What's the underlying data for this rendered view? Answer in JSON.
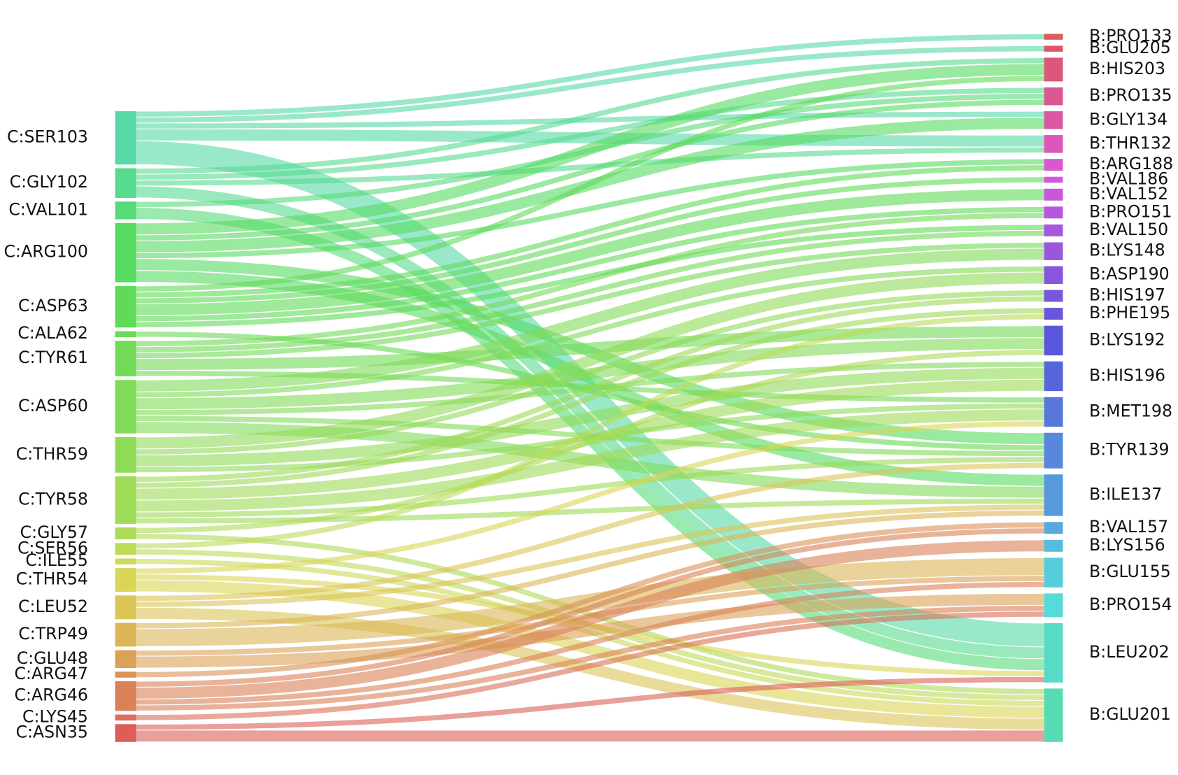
{
  "chart_data": {
    "type": "sankey",
    "left_nodes": [
      {
        "name": "C:SER103",
        "color": "#57d9a6"
      },
      {
        "name": "C:GLY102",
        "color": "#57db8f"
      },
      {
        "name": "C:VAL101",
        "color": "#57db78"
      },
      {
        "name": "C:ARG100",
        "color": "#57db61"
      },
      {
        "name": "C:ASP63",
        "color": "#5fdb57"
      },
      {
        "name": "C:ALA62",
        "color": "#68db57"
      },
      {
        "name": "C:TYR61",
        "color": "#71db57"
      },
      {
        "name": "C:ASP60",
        "color": "#80db57"
      },
      {
        "name": "C:THR59",
        "color": "#8fdb57"
      },
      {
        "name": "C:TYR58",
        "color": "#9edb57"
      },
      {
        "name": "C:GLY57",
        "color": "#addb57"
      },
      {
        "name": "C:SER56",
        "color": "#bddb57"
      },
      {
        "name": "C:ILE55",
        "color": "#ccdb57"
      },
      {
        "name": "C:THR54",
        "color": "#dbd557"
      },
      {
        "name": "C:LEU52",
        "color": "#dbc557"
      },
      {
        "name": "C:TRP49",
        "color": "#dbb557"
      },
      {
        "name": "C:GLU48",
        "color": "#dba157"
      },
      {
        "name": "C:ARG47",
        "color": "#db9157"
      },
      {
        "name": "C:ARG46",
        "color": "#db8157"
      },
      {
        "name": "C:LYS45",
        "color": "#db6f57"
      },
      {
        "name": "C:ASN35",
        "color": "#db5f57"
      }
    ],
    "right_nodes": [
      {
        "name": "B:PRO133",
        "color": "#db5f57"
      },
      {
        "name": "B:GLU205",
        "color": "#db5768"
      },
      {
        "name": "B:HIS203",
        "color": "#db577c"
      },
      {
        "name": "B:PRO135",
        "color": "#db5790"
      },
      {
        "name": "B:GLY134",
        "color": "#db57a4"
      },
      {
        "name": "B:THR132",
        "color": "#db57b9"
      },
      {
        "name": "B:ARG188",
        "color": "#db57cd"
      },
      {
        "name": "B:VAL186",
        "color": "#d557db"
      },
      {
        "name": "B:VAL152",
        "color": "#c957db"
      },
      {
        "name": "B:PRO151",
        "color": "#b757db"
      },
      {
        "name": "B:VAL150",
        "color": "#a757db"
      },
      {
        "name": "B:LYS148",
        "color": "#9957db"
      },
      {
        "name": "B:ASP190",
        "color": "#8557db"
      },
      {
        "name": "B:HIS197",
        "color": "#7757db"
      },
      {
        "name": "B:PHE195",
        "color": "#6857db"
      },
      {
        "name": "B:LYS192",
        "color": "#5a57db"
      },
      {
        "name": "B:HIS196",
        "color": "#5766db"
      },
      {
        "name": "B:MET198",
        "color": "#5777db"
      },
      {
        "name": "B:TYR139",
        "color": "#5788db"
      },
      {
        "name": "B:ILE137",
        "color": "#5799db"
      },
      {
        "name": "B:VAL157",
        "color": "#57aadb"
      },
      {
        "name": "B:LYS156",
        "color": "#57bbdb"
      },
      {
        "name": "B:GLU155",
        "color": "#57ccdb"
      },
      {
        "name": "B:PRO154",
        "color": "#57dbd8"
      },
      {
        "name": "B:LEU202",
        "color": "#57dbc6"
      },
      {
        "name": "B:GLU201",
        "color": "#57dbb3"
      }
    ],
    "links": [
      {
        "source": "C:SER103",
        "target": "B:PRO133",
        "value": 1
      },
      {
        "source": "C:SER103",
        "target": "B:GLU205",
        "value": 1
      },
      {
        "source": "C:SER103",
        "target": "B:GLY134",
        "value": 1
      },
      {
        "source": "C:SER103",
        "target": "B:THR132",
        "value": 2
      },
      {
        "source": "C:SER103",
        "target": "B:LEU202",
        "value": 4
      },
      {
        "source": "C:GLY102",
        "target": "B:HIS203",
        "value": 1
      },
      {
        "source": "C:GLY102",
        "target": "B:PRO135",
        "value": 1
      },
      {
        "source": "C:GLY102",
        "target": "B:THR132",
        "value": 1
      },
      {
        "source": "C:GLY102",
        "target": "B:LEU202",
        "value": 2
      },
      {
        "source": "C:VAL101",
        "target": "B:PRO135",
        "value": 1
      },
      {
        "source": "C:VAL101",
        "target": "B:LEU202",
        "value": 2
      },
      {
        "source": "C:ARG100",
        "target": "B:HIS203",
        "value": 2
      },
      {
        "source": "C:ARG100",
        "target": "B:PRO135",
        "value": 1
      },
      {
        "source": "C:ARG100",
        "target": "B:GLY134",
        "value": 2
      },
      {
        "source": "C:ARG100",
        "target": "B:ARG188",
        "value": 1
      },
      {
        "source": "C:ARG100",
        "target": "B:TYR139",
        "value": 2
      },
      {
        "source": "C:ARG100",
        "target": "B:ILE137",
        "value": 2
      },
      {
        "source": "C:ASP63",
        "target": "B:HIS203",
        "value": 1
      },
      {
        "source": "C:ASP63",
        "target": "B:ARG188",
        "value": 1
      },
      {
        "source": "C:ASP63",
        "target": "B:VAL186",
        "value": 1
      },
      {
        "source": "C:ASP63",
        "target": "B:VAL152",
        "value": 2
      },
      {
        "source": "C:ASP63",
        "target": "B:PRO151",
        "value": 1
      },
      {
        "source": "C:ASP63",
        "target": "B:VAL150",
        "value": 1
      },
      {
        "source": "C:ALA62",
        "target": "B:TYR139",
        "value": 1
      },
      {
        "source": "C:TYR61",
        "target": "B:PRO151",
        "value": 1
      },
      {
        "source": "C:TYR61",
        "target": "B:VAL150",
        "value": 1
      },
      {
        "source": "C:TYR61",
        "target": "B:LYS148",
        "value": 1
      },
      {
        "source": "C:TYR61",
        "target": "B:LYS192",
        "value": 2
      },
      {
        "source": "C:TYR61",
        "target": "B:MET198",
        "value": 1
      },
      {
        "source": "C:ASP60",
        "target": "B:LYS148",
        "value": 2
      },
      {
        "source": "C:ASP60",
        "target": "B:ASP190",
        "value": 1
      },
      {
        "source": "C:ASP60",
        "target": "B:LYS192",
        "value": 2
      },
      {
        "source": "C:ASP60",
        "target": "B:HIS196",
        "value": 1
      },
      {
        "source": "C:ASP60",
        "target": "B:TYR139",
        "value": 1
      },
      {
        "source": "C:ASP60",
        "target": "B:ILE137",
        "value": 2
      },
      {
        "source": "C:THR59",
        "target": "B:ASP190",
        "value": 2
      },
      {
        "source": "C:THR59",
        "target": "B:HIS197",
        "value": 1
      },
      {
        "source": "C:THR59",
        "target": "B:HIS196",
        "value": 2
      },
      {
        "source": "C:THR59",
        "target": "B:MET198",
        "value": 1
      },
      {
        "source": "C:TYR58",
        "target": "B:HIS197",
        "value": 1
      },
      {
        "source": "C:TYR58",
        "target": "B:PHE195",
        "value": 1
      },
      {
        "source": "C:TYR58",
        "target": "B:HIS196",
        "value": 2
      },
      {
        "source": "C:TYR58",
        "target": "B:MET198",
        "value": 2
      },
      {
        "source": "C:TYR58",
        "target": "B:TYR139",
        "value": 1
      },
      {
        "source": "C:TYR58",
        "target": "B:ILE137",
        "value": 1
      },
      {
        "source": "C:GLY57",
        "target": "B:LYS192",
        "value": 1
      },
      {
        "source": "C:GLY57",
        "target": "B:GLU201",
        "value": 1
      },
      {
        "source": "C:SER56",
        "target": "B:PHE195",
        "value": 1
      },
      {
        "source": "C:SER56",
        "target": "B:GLU201",
        "value": 1
      },
      {
        "source": "C:ILE55",
        "target": "B:GLU201",
        "value": 1
      },
      {
        "source": "C:THR54",
        "target": "B:MET198",
        "value": 1
      },
      {
        "source": "C:THR54",
        "target": "B:LEU202",
        "value": 1
      },
      {
        "source": "C:THR54",
        "target": "B:GLU201",
        "value": 2
      },
      {
        "source": "C:LEU52",
        "target": "B:TYR139",
        "value": 1
      },
      {
        "source": "C:LEU52",
        "target": "B:ILE137",
        "value": 1
      },
      {
        "source": "C:LEU52",
        "target": "B:GLU201",
        "value": 2
      },
      {
        "source": "C:TRP49",
        "target": "B:ILE137",
        "value": 1
      },
      {
        "source": "C:TRP49",
        "target": "B:GLU155",
        "value": 3
      },
      {
        "source": "C:GLU48",
        "target": "B:GLU155",
        "value": 1
      },
      {
        "source": "C:GLU48",
        "target": "B:PRO154",
        "value": 2
      },
      {
        "source": "C:ARG47",
        "target": "B:VAL157",
        "value": 1
      },
      {
        "source": "C:ARG46",
        "target": "B:VAL157",
        "value": 1
      },
      {
        "source": "C:ARG46",
        "target": "B:LYS156",
        "value": 2
      },
      {
        "source": "C:ARG46",
        "target": "B:GLU155",
        "value": 1
      },
      {
        "source": "C:ARG46",
        "target": "B:PRO154",
        "value": 1
      },
      {
        "source": "C:LYS45",
        "target": "B:PRO154",
        "value": 1
      },
      {
        "source": "C:ASN35",
        "target": "B:LEU202",
        "value": 1
      },
      {
        "source": "C:ASN35",
        "target": "B:GLU201",
        "value": 2
      }
    ]
  }
}
